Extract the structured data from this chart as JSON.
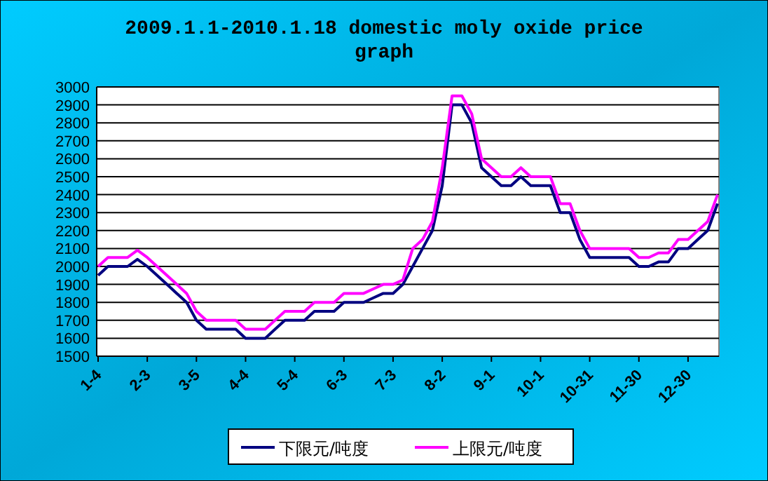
{
  "chart_data": {
    "type": "line",
    "title": "2009.1.1-2010.1.18 domestic moly oxide price graph",
    "categories": [
      "1-4",
      null,
      null,
      null,
      null,
      "2-3",
      null,
      null,
      null,
      null,
      "3-5",
      null,
      null,
      null,
      null,
      "4-4",
      null,
      null,
      null,
      null,
      "5-4",
      null,
      null,
      null,
      null,
      "6-3",
      null,
      null,
      null,
      null,
      "7-3",
      null,
      null,
      null,
      null,
      "8-2",
      null,
      null,
      null,
      null,
      "9-1",
      null,
      null,
      null,
      null,
      "10-1",
      null,
      null,
      null,
      null,
      "10-31",
      null,
      null,
      null,
      null,
      "11-30",
      null,
      null,
      null,
      null,
      "12-30",
      null,
      null,
      null
    ],
    "series": [
      {
        "name": "下限元/吨度",
        "color": "#000080",
        "values": [
          1950,
          2000,
          2000,
          2000,
          2040,
          2000,
          1950,
          1900,
          1850,
          1800,
          1700,
          1650,
          1650,
          1650,
          1650,
          1600,
          1600,
          1600,
          1650,
          1700,
          1700,
          1700,
          1750,
          1750,
          1750,
          1800,
          1800,
          1800,
          1825,
          1850,
          1850,
          1900,
          2000,
          2100,
          2200,
          2450,
          2900,
          2900,
          2800,
          2550,
          2500,
          2450,
          2450,
          2500,
          2450,
          2450,
          2450,
          2300,
          2300,
          2150,
          2050,
          2050,
          2050,
          2050,
          2050,
          2000,
          2000,
          2025,
          2025,
          2100,
          2100,
          2150,
          2200,
          2350
        ]
      },
      {
        "name": "上限元/吨度",
        "color": "#ff00ff",
        "values": [
          2000,
          2050,
          2050,
          2050,
          2090,
          2050,
          2000,
          1950,
          1900,
          1850,
          1750,
          1700,
          1700,
          1700,
          1700,
          1650,
          1650,
          1650,
          1700,
          1750,
          1750,
          1750,
          1800,
          1800,
          1800,
          1850,
          1850,
          1850,
          1875,
          1900,
          1900,
          1925,
          2100,
          2150,
          2250,
          2550,
          2950,
          2950,
          2850,
          2600,
          2550,
          2500,
          2500,
          2550,
          2500,
          2500,
          2500,
          2350,
          2350,
          2200,
          2100,
          2100,
          2100,
          2100,
          2100,
          2050,
          2050,
          2075,
          2075,
          2150,
          2150,
          2200,
          2250,
          2400
        ]
      }
    ],
    "ylim": [
      1500,
      3000
    ],
    "yticks": [
      1500,
      1600,
      1700,
      1800,
      1900,
      2000,
      2100,
      2200,
      2300,
      2400,
      2500,
      2600,
      2700,
      2800,
      2900,
      3000
    ],
    "grid": "y",
    "legend": "bottom",
    "marker": "none",
    "line_style": "solid"
  }
}
